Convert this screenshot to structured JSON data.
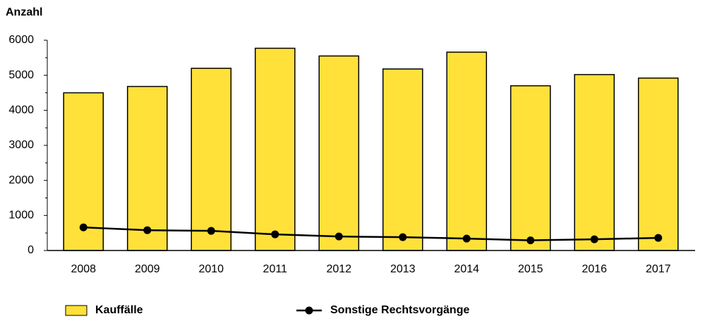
{
  "chart_data": {
    "type": "bar",
    "title": "Anzahl",
    "categories": [
      "2008",
      "2009",
      "2010",
      "2011",
      "2012",
      "2013",
      "2014",
      "2015",
      "2016",
      "2017"
    ],
    "series": [
      {
        "name": "Kauffälle",
        "type": "bar",
        "color": "#ffe13a",
        "values": [
          4500,
          4680,
          5200,
          5770,
          5550,
          5180,
          5660,
          4700,
          5020,
          4920
        ]
      },
      {
        "name": "Sonstige Rechtsvorgänge",
        "type": "line",
        "color": "#000000",
        "values": [
          660,
          580,
          560,
          460,
          400,
          380,
          340,
          290,
          320,
          360
        ]
      }
    ],
    "ylim": [
      0,
      6000
    ],
    "yticks": [
      0,
      1000,
      2000,
      3000,
      4000,
      5000,
      6000
    ],
    "grid": false
  }
}
